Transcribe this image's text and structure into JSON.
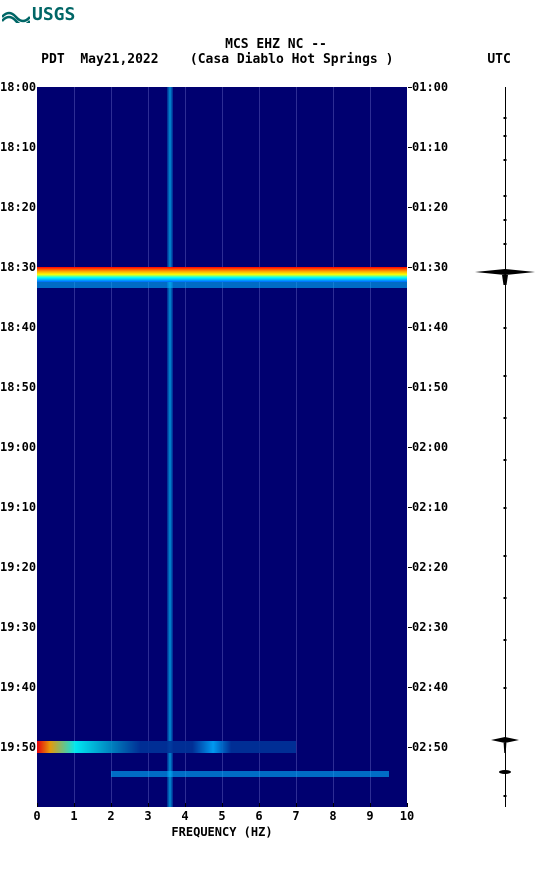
{
  "logo": {
    "text": "USGS",
    "color": "#006666"
  },
  "header": {
    "line1": "MCS EHZ NC --",
    "tz_left": "PDT",
    "date": "May21,2022",
    "station": "(Casa Diablo Hot Springs )",
    "tz_right": "UTC"
  },
  "spectrogram": {
    "type": "spectrogram",
    "bg_color": "#000070",
    "x": {
      "min": 0,
      "max": 10,
      "ticks": [
        0,
        1,
        2,
        3,
        4,
        5,
        6,
        7,
        8,
        9,
        10
      ],
      "title": "FREQUENCY (HZ)"
    },
    "time_axis": {
      "start_min": 0,
      "end_min": 120,
      "left_labels": [
        "18:00",
        "18:10",
        "18:20",
        "18:30",
        "18:40",
        "18:50",
        "19:00",
        "19:10",
        "19:20",
        "19:30",
        "19:40",
        "19:50"
      ],
      "right_labels": [
        "01:00",
        "01:10",
        "01:20",
        "01:30",
        "01:40",
        "01:50",
        "02:00",
        "02:10",
        "02:20",
        "02:30",
        "02:40",
        "02:50"
      ]
    },
    "vertical_feature": {
      "freq": 3.6,
      "color": "#00ccff"
    },
    "events": [
      {
        "time_min": 30,
        "duration_min": 2.5,
        "intensity": "high"
      },
      {
        "time_min": 109,
        "duration_min": 2.0,
        "intensity": "medium",
        "partial": true
      },
      {
        "time_min": 114,
        "duration_min": 1.0,
        "intensity": "low"
      }
    ],
    "grid_vertical_every": 1,
    "colormap": [
      "#000050",
      "#0000a0",
      "#0066ff",
      "#00ffff",
      "#00ff00",
      "#ffff00",
      "#ff8800",
      "#ff0000",
      "#aa0000"
    ]
  },
  "waveform": {
    "events": [
      {
        "time_min": 31,
        "amplitude": 30,
        "shape": "spike"
      },
      {
        "time_min": 109,
        "amplitude": 14,
        "shape": "spike"
      },
      {
        "time_min": 114.5,
        "amplitude": 6,
        "shape": "blip"
      }
    ],
    "noise_dots": [
      5,
      8,
      12,
      18,
      22,
      26,
      40,
      48,
      55,
      62,
      70,
      78,
      85,
      92,
      100,
      118
    ]
  },
  "fonts": {
    "mono": "monospace",
    "label_size": 12,
    "header_size": 13
  }
}
